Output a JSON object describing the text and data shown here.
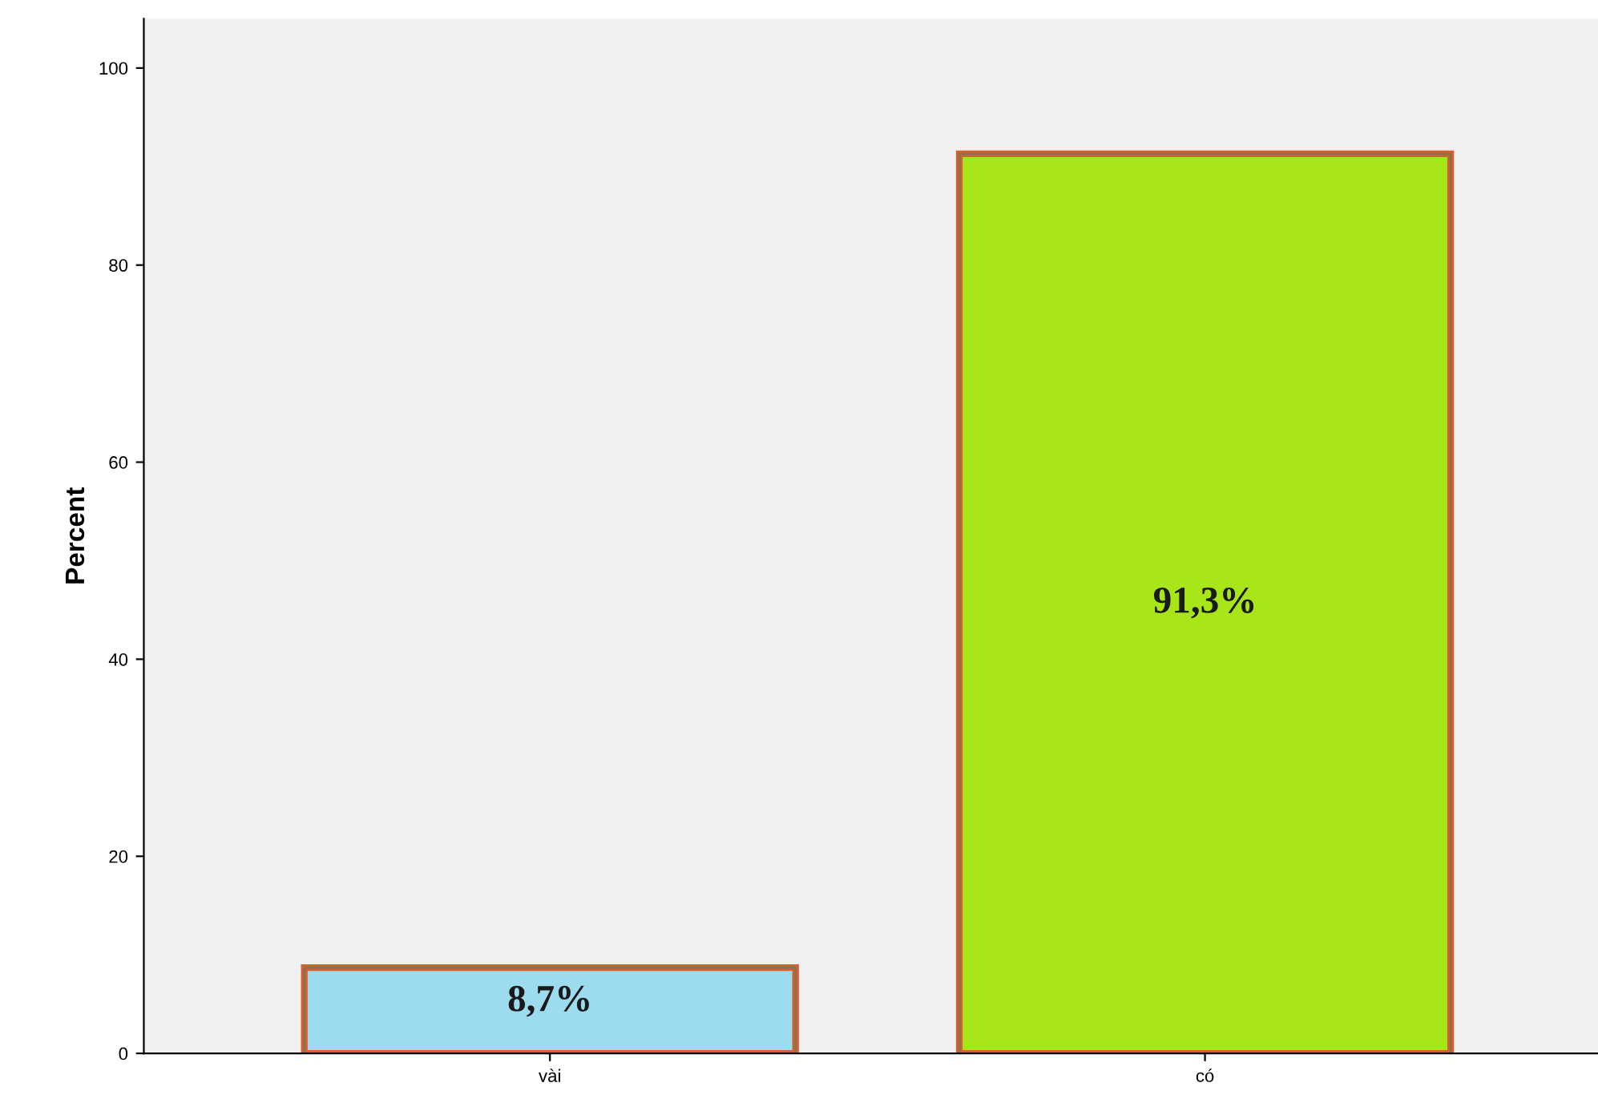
{
  "chart_data": {
    "type": "bar",
    "ylabel": "Percent",
    "categories": [
      "vài",
      "có"
    ],
    "values": [
      8.7,
      91.3
    ],
    "colors": [
      "#9ddcee",
      "#a8e619"
    ],
    "value_labels": [
      "8,7%",
      "91,3%"
    ],
    "ylim": [
      0,
      105
    ],
    "yticks": [
      0,
      20,
      40,
      60,
      80,
      100
    ],
    "grid": false,
    "legend": false
  }
}
